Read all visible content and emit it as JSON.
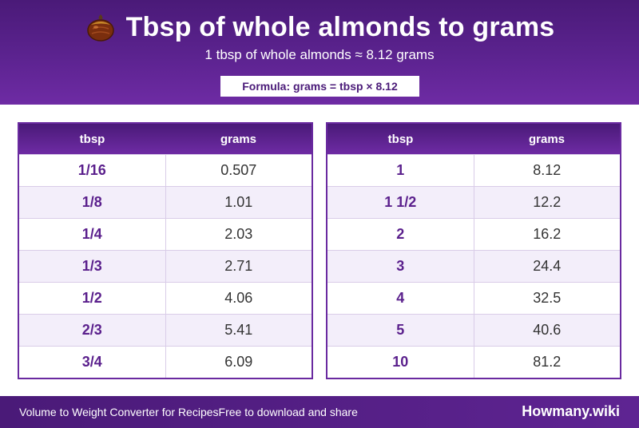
{
  "header": {
    "icon": "almond-nut-icon",
    "title": "Tbsp of whole almonds to grams",
    "subtitle": "1 tbsp of whole almonds ≈ 8.12 grams",
    "formula": "Formula: grams = tbsp × 8.12"
  },
  "table_left": {
    "columns": [
      "tbsp",
      "grams"
    ],
    "rows": [
      {
        "tbsp": "1/16",
        "grams": "0.507"
      },
      {
        "tbsp": "1/8",
        "grams": "1.01"
      },
      {
        "tbsp": "1/4",
        "grams": "2.03"
      },
      {
        "tbsp": "1/3",
        "grams": "2.71"
      },
      {
        "tbsp": "1/2",
        "grams": "4.06"
      },
      {
        "tbsp": "2/3",
        "grams": "5.41"
      },
      {
        "tbsp": "3/4",
        "grams": "6.09"
      }
    ]
  },
  "table_right": {
    "columns": [
      "tbsp",
      "grams"
    ],
    "rows": [
      {
        "tbsp": "1",
        "grams": "8.12"
      },
      {
        "tbsp": "1 1/2",
        "grams": "12.2"
      },
      {
        "tbsp": "2",
        "grams": "16.2"
      },
      {
        "tbsp": "3",
        "grams": "24.4"
      },
      {
        "tbsp": "4",
        "grams": "32.5"
      },
      {
        "tbsp": "5",
        "grams": "40.6"
      },
      {
        "tbsp": "10",
        "grams": "81.2"
      }
    ]
  },
  "footer": {
    "left_text_1": "Volume to Weight Converter for Recipes",
    "left_text_2": "Free to download and share",
    "brand": "Howmany.wiki"
  },
  "colors": {
    "brand_purple": "#5c2390",
    "accent_text": "#5a1f8c",
    "row_alt": "#f3eefa"
  }
}
